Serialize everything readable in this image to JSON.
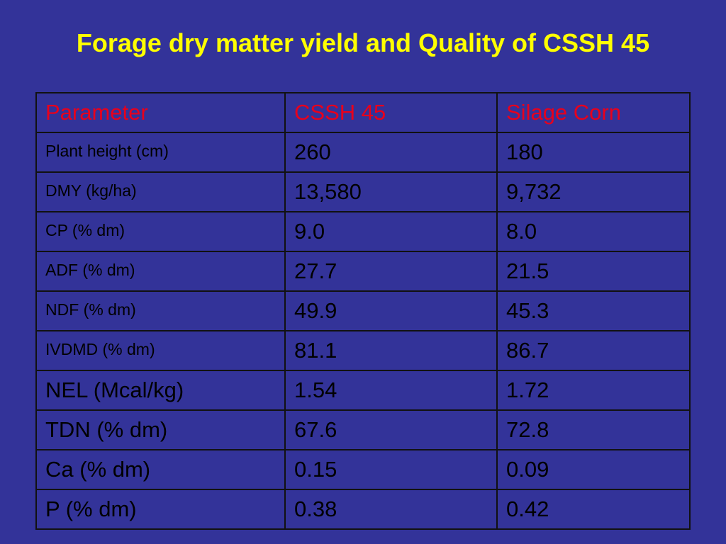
{
  "header": {
    "title": "Forage dry matter yield and Quality of CSSH 45"
  },
  "table": {
    "columns": [
      "Parameter",
      "CSSH 45",
      "Silage Corn"
    ],
    "rows": [
      [
        "Plant height (cm)",
        "260",
        "180"
      ],
      [
        "DMY (kg/ha)",
        "13,580",
        "9,732"
      ],
      [
        "CP (% dm)",
        "9.0",
        "8.0"
      ],
      [
        "ADF (% dm)",
        "27.7",
        "21.5"
      ],
      [
        "NDF (% dm)",
        "49.9",
        "45.3"
      ],
      [
        "IVDMD (% dm)",
        "81.1",
        "86.7"
      ],
      [
        "NEL (Mcal/kg)",
        "1.54",
        "1.72"
      ],
      [
        "TDN (% dm)",
        "67.6",
        "72.8"
      ],
      [
        "Ca (% dm)",
        "0.15",
        "0.09"
      ],
      [
        "P (% dm)",
        "0.38",
        "0.42"
      ]
    ]
  }
}
